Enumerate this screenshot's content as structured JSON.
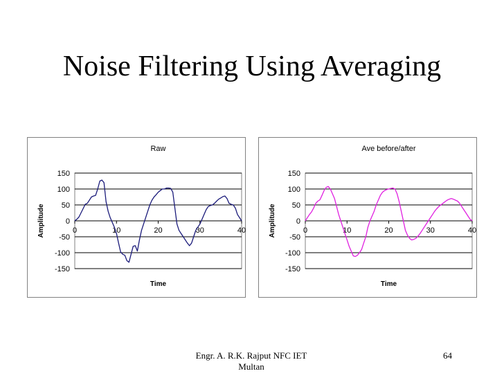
{
  "slide": {
    "title": "Noise Filtering Using Averaging",
    "author": "Engr. A. R.K. Rajput NFC IET Multan",
    "page": "64"
  },
  "chart_data": [
    {
      "type": "line",
      "title": "Raw",
      "xlabel": "Time",
      "ylabel": "Amplitude",
      "xlim": [
        0,
        40
      ],
      "ylim": [
        -150,
        150
      ],
      "xticks": [
        0,
        10,
        20,
        30,
        40
      ],
      "yticks": [
        150,
        100,
        50,
        0,
        -50,
        -100,
        -150
      ],
      "grid": "horizontal",
      "series": [
        {
          "color": "#1a1a7a",
          "x": [
            0,
            0.5,
            1,
            1.5,
            2,
            2.5,
            3,
            3.5,
            4,
            4.5,
            5,
            5.5,
            6,
            6.5,
            7,
            7.5,
            8,
            8.5,
            9,
            9.5,
            10,
            10.5,
            11,
            11.5,
            12,
            12.5,
            13,
            13.5,
            14,
            14.5,
            15,
            15.5,
            16,
            16.5,
            17,
            17.5,
            18,
            18.5,
            19,
            19.5,
            20,
            20.5,
            21,
            21.5,
            22,
            22.5,
            23,
            23.5,
            24,
            24.5,
            25,
            25.5,
            26,
            26.5,
            27,
            27.5,
            28,
            28.5,
            29,
            29.5,
            30,
            30.5,
            31,
            31.5,
            32,
            32.5,
            33,
            33.5,
            34,
            34.5,
            35,
            35.5,
            36,
            36.5,
            37,
            37.5,
            38,
            38.5,
            39,
            39.5,
            40
          ],
          "y": [
            0,
            5,
            12,
            25,
            38,
            52,
            55,
            65,
            75,
            78,
            80,
            100,
            125,
            128,
            120,
            60,
            30,
            10,
            -5,
            -20,
            -40,
            -70,
            -98,
            -105,
            -108,
            -125,
            -130,
            -105,
            -80,
            -78,
            -95,
            -60,
            -30,
            -10,
            10,
            30,
            50,
            65,
            75,
            82,
            90,
            95,
            100,
            100,
            103,
            103,
            102,
            90,
            40,
            -10,
            -30,
            -40,
            -50,
            -60,
            -70,
            -78,
            -70,
            -50,
            -30,
            -20,
            -10,
            5,
            20,
            35,
            45,
            48,
            50,
            55,
            62,
            68,
            72,
            76,
            78,
            70,
            55,
            52,
            50,
            40,
            20,
            10,
            0
          ]
        }
      ]
    },
    {
      "type": "line",
      "title": "Ave before/after",
      "xlabel": "Time",
      "ylabel": "Amplitude",
      "xlim": [
        0,
        40
      ],
      "ylim": [
        -150,
        150
      ],
      "xticks": [
        0,
        10,
        20,
        30,
        40
      ],
      "yticks": [
        150,
        100,
        50,
        0,
        -50,
        -100,
        -150
      ],
      "grid": "horizontal",
      "series": [
        {
          "color": "#e020e0",
          "x": [
            0,
            0.5,
            1,
            1.5,
            2,
            2.5,
            3,
            3.5,
            4,
            4.5,
            5,
            5.5,
            6,
            6.5,
            7,
            7.5,
            8,
            8.5,
            9,
            9.5,
            10,
            10.5,
            11,
            11.5,
            12,
            12.5,
            13,
            13.5,
            14,
            14.5,
            15,
            15.5,
            16,
            16.5,
            17,
            17.5,
            18,
            18.5,
            19,
            19.5,
            20,
            20.5,
            21,
            21.5,
            22,
            22.5,
            23,
            23.5,
            24,
            24.5,
            25,
            25.5,
            26,
            26.5,
            27,
            27.5,
            28,
            28.5,
            29,
            29.5,
            30,
            30.5,
            31,
            31.5,
            32,
            32.5,
            33,
            33.5,
            34,
            34.5,
            35,
            35.5,
            36,
            36.5,
            37,
            37.5,
            38,
            38.5,
            39,
            39.5,
            40
          ],
          "y": [
            0,
            10,
            20,
            28,
            40,
            55,
            62,
            66,
            80,
            95,
            105,
            108,
            100,
            85,
            70,
            45,
            20,
            0,
            -20,
            -40,
            -60,
            -80,
            -95,
            -110,
            -112,
            -108,
            -100,
            -90,
            -70,
            -50,
            -20,
            0,
            15,
            30,
            50,
            65,
            80,
            90,
            95,
            98,
            100,
            102,
            103,
            100,
            85,
            60,
            30,
            0,
            -30,
            -45,
            -55,
            -60,
            -58,
            -55,
            -48,
            -40,
            -30,
            -20,
            -10,
            0,
            10,
            20,
            30,
            38,
            45,
            50,
            55,
            60,
            65,
            68,
            70,
            68,
            65,
            62,
            55,
            45,
            35,
            25,
            15,
            5,
            0
          ]
        }
      ]
    }
  ]
}
